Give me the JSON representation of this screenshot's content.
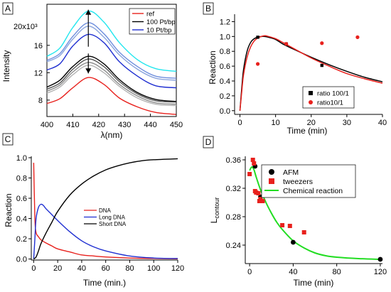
{
  "colors": {
    "red": "#e8211d",
    "black": "#000000",
    "blue": "#1f2fd1",
    "green": "#22dd22"
  },
  "chart_data": [
    {
      "panel": "A",
      "type": "line",
      "xlabel": "λ(nm)",
      "ylabel": "Intensity",
      "xlim": [
        400,
        450
      ],
      "ylim": [
        5.6,
        22
      ],
      "xticks": [
        400,
        410,
        420,
        430,
        440,
        450
      ],
      "yticks": [
        8,
        12,
        16
      ],
      "ytop_label": "20x10³",
      "legend": {
        "placement": "top-right",
        "entries": [
          {
            "label": "ref",
            "color": "#e8211d"
          },
          {
            "label": "100 Pt/bp",
            "color": "#000000"
          },
          {
            "label": "10 Pt/bp",
            "color": "#1f2fd1"
          }
        ]
      },
      "series": [
        {
          "color": "#22e6ee",
          "points": [
            [
              400,
              14.4
            ],
            [
              405,
              15.6
            ],
            [
              410,
              18.6
            ],
            [
              416,
              21.0
            ],
            [
              422,
              19.4
            ],
            [
              428,
              16.4
            ],
            [
              435,
              13.9
            ],
            [
              442,
              12.6
            ],
            [
              450,
              12.2
            ]
          ]
        },
        {
          "color": "#6f8fdd",
          "points": [
            [
              400,
              13.8
            ],
            [
              405,
              14.8
            ],
            [
              410,
              17.3
            ],
            [
              416,
              19.3
            ],
            [
              422,
              17.7
            ],
            [
              428,
              15.0
            ],
            [
              435,
              12.9
            ],
            [
              442,
              11.5
            ],
            [
              450,
              11.2
            ]
          ]
        },
        {
          "color": "#8aa4dd",
          "points": [
            [
              400,
              13.6
            ],
            [
              405,
              14.5
            ],
            [
              410,
              16.9
            ],
            [
              416,
              18.8
            ],
            [
              422,
              17.2
            ],
            [
              428,
              14.6
            ],
            [
              435,
              12.5
            ],
            [
              442,
              11.2
            ],
            [
              450,
              10.9
            ]
          ]
        },
        {
          "color": "#1f2fd1",
          "points": [
            [
              400,
              12.4
            ],
            [
              405,
              13.3
            ],
            [
              410,
              15.9
            ],
            [
              416,
              17.6
            ],
            [
              422,
              16.4
            ],
            [
              428,
              13.6
            ],
            [
              435,
              11.5
            ],
            [
              442,
              10.1
            ],
            [
              450,
              9.8
            ]
          ]
        },
        {
          "color": "#000000",
          "points": [
            [
              400,
              9.9
            ],
            [
              405,
              10.9
            ],
            [
              410,
              12.9
            ],
            [
              416,
              14.4
            ],
            [
              422,
              13.3
            ],
            [
              428,
              11.0
            ],
            [
              435,
              9.1
            ],
            [
              442,
              8.1
            ],
            [
              450,
              7.8
            ]
          ]
        },
        {
          "color": "#555555",
          "points": [
            [
              400,
              9.6
            ],
            [
              405,
              10.5
            ],
            [
              410,
              12.5
            ],
            [
              416,
              14.0
            ],
            [
              422,
              12.9
            ],
            [
              428,
              10.7
            ],
            [
              435,
              8.9
            ],
            [
              442,
              7.9
            ],
            [
              450,
              7.7
            ]
          ]
        },
        {
          "color": "#8c8c8c",
          "points": [
            [
              400,
              9.3
            ],
            [
              405,
              10.2
            ],
            [
              410,
              12.1
            ],
            [
              416,
              13.5
            ],
            [
              422,
              12.4
            ],
            [
              428,
              10.3
            ],
            [
              435,
              8.6
            ],
            [
              442,
              7.6
            ],
            [
              450,
              7.4
            ]
          ]
        },
        {
          "color": "#b4b4b4",
          "points": [
            [
              400,
              9.0
            ],
            [
              405,
              9.9
            ],
            [
              410,
              11.7
            ],
            [
              416,
              13.1
            ],
            [
              422,
              12.0
            ],
            [
              428,
              10.0
            ],
            [
              435,
              8.3
            ],
            [
              442,
              7.4
            ],
            [
              450,
              7.2
            ]
          ]
        },
        {
          "color": "#e8211d",
          "points": [
            [
              400,
              7.5
            ],
            [
              405,
              8.2
            ],
            [
              410,
              9.8
            ],
            [
              416,
              11.3
            ],
            [
              422,
              10.3
            ],
            [
              428,
              8.3
            ],
            [
              435,
              7.0
            ],
            [
              442,
              6.2
            ],
            [
              450,
              5.9
            ]
          ]
        }
      ],
      "arrows": [
        {
          "x": 416,
          "from": 15.8,
          "to": 21.2
        },
        {
          "x": 416,
          "from": 14.8,
          "to": 11.9
        }
      ]
    },
    {
      "panel": "B",
      "type": "line",
      "xlabel": "Time (min)",
      "ylabel": "Reaction",
      "xlim": [
        -1.5,
        40
      ],
      "ylim": [
        -0.05,
        1.3
      ],
      "xticks": [
        0,
        10,
        20,
        30,
        40
      ],
      "yticks": [
        0.0,
        0.2,
        0.4,
        0.6,
        0.8,
        1.0,
        1.2
      ],
      "legend": {
        "placement": "bottom-right",
        "entries": [
          {
            "label": "ratio 100/1",
            "color": "#000000",
            "marker": "square"
          },
          {
            "label": "ratio10/1",
            "color": "#e8211d",
            "marker": "circle"
          }
        ]
      },
      "series": [
        {
          "color": "#000000",
          "points": [
            [
              0,
              0.0
            ],
            [
              0.5,
              0.3
            ],
            [
              1,
              0.55
            ],
            [
              2,
              0.8
            ],
            [
              3,
              0.92
            ],
            [
              4,
              0.97
            ],
            [
              5,
              0.99
            ],
            [
              6,
              1.0
            ],
            [
              7,
              1.0
            ],
            [
              8,
              0.99
            ],
            [
              10,
              0.96
            ],
            [
              12,
              0.9
            ],
            [
              15,
              0.83
            ],
            [
              20,
              0.72
            ],
            [
              25,
              0.62
            ],
            [
              30,
              0.53
            ],
            [
              35,
              0.45
            ],
            [
              40,
              0.39
            ]
          ]
        },
        {
          "color": "#e8211d",
          "points": [
            [
              0,
              0.0
            ],
            [
              0.5,
              0.25
            ],
            [
              1,
              0.48
            ],
            [
              2,
              0.72
            ],
            [
              3,
              0.86
            ],
            [
              4,
              0.94
            ],
            [
              5,
              0.98
            ],
            [
              6,
              1.0
            ],
            [
              7,
              1.01
            ],
            [
              8,
              1.0
            ],
            [
              10,
              0.97
            ],
            [
              12,
              0.92
            ],
            [
              15,
              0.84
            ],
            [
              20,
              0.71
            ],
            [
              25,
              0.6
            ],
            [
              30,
              0.5
            ],
            [
              35,
              0.43
            ],
            [
              40,
              0.37
            ]
          ]
        }
      ],
      "points": [
        {
          "color": "#000000",
          "marker": "square",
          "points": [
            [
              5,
              0.99
            ],
            [
              13,
              0.9
            ],
            [
              23,
              0.61
            ]
          ]
        },
        {
          "color": "#e8211d",
          "marker": "circle",
          "points": [
            [
              5,
              0.63
            ],
            [
              13,
              0.9
            ],
            [
              23,
              0.91
            ],
            [
              33,
              0.99
            ]
          ]
        }
      ]
    },
    {
      "panel": "C",
      "type": "line",
      "xlabel": "Time (min.)",
      "ylabel": "Reaction",
      "xlim": [
        -2,
        120
      ],
      "ylim": [
        -0.01,
        1.0
      ],
      "xticks": [
        0,
        20,
        40,
        60,
        80,
        100,
        120
      ],
      "yticks": [
        0.0,
        0.2,
        0.4,
        0.6,
        0.8,
        1.0
      ],
      "legend": {
        "placement": "center-right",
        "entries": [
          {
            "label": "DNA",
            "color": "#e8211d"
          },
          {
            "label": "Long DNA",
            "color": "#1f2fd1"
          },
          {
            "label": "Short DNA",
            "color": "#000000"
          }
        ]
      },
      "series": [
        {
          "color": "#e8211d",
          "points": [
            [
              0,
              0.95
            ],
            [
              1,
              0.4
            ],
            [
              2,
              0.26
            ],
            [
              4,
              0.22
            ],
            [
              6,
              0.19
            ],
            [
              10,
              0.16
            ],
            [
              15,
              0.13
            ],
            [
              20,
              0.1
            ],
            [
              30,
              0.07
            ],
            [
              40,
              0.04
            ],
            [
              50,
              0.03
            ],
            [
              60,
              0.02
            ],
            [
              80,
              0.01
            ],
            [
              100,
              0.005
            ],
            [
              120,
              0.002
            ]
          ]
        },
        {
          "color": "#1f2fd1",
          "points": [
            [
              0,
              0.0
            ],
            [
              1,
              0.2
            ],
            [
              2,
              0.4
            ],
            [
              4,
              0.51
            ],
            [
              6,
              0.54
            ],
            [
              8,
              0.53
            ],
            [
              10,
              0.5
            ],
            [
              15,
              0.44
            ],
            [
              20,
              0.38
            ],
            [
              30,
              0.27
            ],
            [
              40,
              0.18
            ],
            [
              50,
              0.12
            ],
            [
              60,
              0.08
            ],
            [
              80,
              0.03
            ],
            [
              100,
              0.01
            ],
            [
              120,
              0.005
            ]
          ]
        },
        {
          "color": "#000000",
          "points": [
            [
              0,
              0.0
            ],
            [
              2,
              0.02
            ],
            [
              4,
              0.08
            ],
            [
              6,
              0.15
            ],
            [
              10,
              0.25
            ],
            [
              15,
              0.36
            ],
            [
              20,
              0.47
            ],
            [
              30,
              0.63
            ],
            [
              40,
              0.74
            ],
            [
              50,
              0.82
            ],
            [
              60,
              0.88
            ],
            [
              70,
              0.92
            ],
            [
              80,
              0.95
            ],
            [
              90,
              0.97
            ],
            [
              100,
              0.98
            ],
            [
              120,
              0.99
            ]
          ]
        }
      ]
    },
    {
      "panel": "D",
      "type": "scatter",
      "xlabel": "Time (min)",
      "ylabel": "L",
      "ylabel_sub": "contour",
      "xlim": [
        -4,
        122
      ],
      "ylim": [
        0.214,
        0.365
      ],
      "xticks": [
        0,
        40,
        80,
        120
      ],
      "yticks": [
        0.24,
        0.28,
        0.32,
        0.36
      ],
      "legend": {
        "placement": "top-right",
        "entries": [
          {
            "label": "AFM",
            "color": "#000000",
            "marker": "circle"
          },
          {
            "label": "tweezers",
            "color": "#e8211d",
            "marker": "square"
          },
          {
            "label": "Chemical reaction",
            "color": "#22dd22",
            "marker": "line"
          }
        ]
      },
      "series": [
        {
          "color": "#22dd22",
          "points": [
            [
              0,
              0.345
            ],
            [
              2,
              0.35
            ],
            [
              4,
              0.346
            ],
            [
              6,
              0.336
            ],
            [
              10,
              0.318
            ],
            [
              15,
              0.3
            ],
            [
              20,
              0.285
            ],
            [
              25,
              0.272
            ],
            [
              30,
              0.262
            ],
            [
              40,
              0.246
            ],
            [
              50,
              0.236
            ],
            [
              60,
              0.229
            ],
            [
              70,
              0.225
            ],
            [
              80,
              0.223
            ],
            [
              100,
              0.221
            ],
            [
              120,
              0.22
            ]
          ]
        }
      ],
      "points": [
        {
          "color": "#000000",
          "marker": "circle",
          "points": [
            [
              5,
              0.351
            ],
            [
              10,
              0.308
            ],
            [
              40,
              0.244
            ],
            [
              120,
              0.22
            ]
          ]
        },
        {
          "color": "#e8211d",
          "marker": "square",
          "points": [
            [
              0,
              0.34
            ],
            [
              3,
              0.36
            ],
            [
              4,
              0.355
            ],
            [
              5,
              0.316
            ],
            [
              6,
              0.314
            ],
            [
              8,
              0.313
            ],
            [
              9,
              0.302
            ],
            [
              10,
              0.305
            ],
            [
              12,
              0.302
            ],
            [
              30,
              0.268
            ],
            [
              37,
              0.267
            ],
            [
              50,
              0.258
            ]
          ]
        }
      ]
    }
  ]
}
